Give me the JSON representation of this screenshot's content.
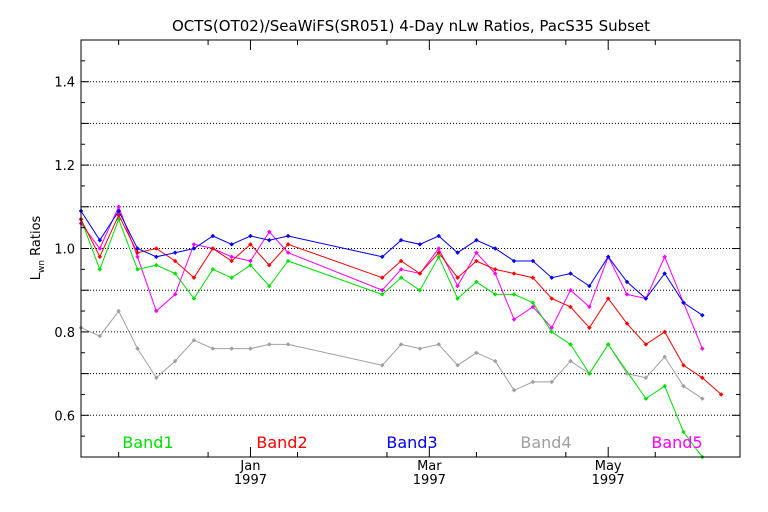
{
  "chart_data": {
    "type": "line",
    "title": "OCTS(OT02)/SeaWiFS(SR051) 4-Day nLw Ratios, PacS35 Subset",
    "ylabel_main": "L",
    "ylabel_sub": "wn",
    "ylabel_rest": " Ratios",
    "ylim": [
      0.5,
      1.5
    ],
    "yticks": [
      "0.6",
      "0.8",
      "1.0",
      "1.2",
      "1.4"
    ],
    "ytick_values": [
      0.6,
      0.8,
      1.0,
      1.2,
      1.4
    ],
    "xlim": [
      0,
      35
    ],
    "xticks": [
      {
        "x": 9,
        "month": "Jan",
        "year": "1997"
      },
      {
        "x": 18.5,
        "month": "Mar",
        "year": "1997"
      },
      {
        "x": 28,
        "month": "May",
        "year": "1997"
      }
    ],
    "x": [
      0,
      1,
      2,
      3,
      4,
      5,
      6,
      7,
      8,
      9,
      10,
      11,
      12,
      13,
      14,
      16,
      17,
      18,
      19,
      20,
      21,
      22,
      23,
      24,
      25,
      26,
      27,
      28,
      29,
      30,
      31,
      32,
      33,
      34,
      35
    ],
    "grid": true,
    "legend_position": "bottom",
    "series": [
      {
        "name": "Band1",
        "color": "#00e000",
        "values": [
          1.07,
          0.95,
          1.07,
          0.95,
          0.96,
          0.94,
          0.88,
          0.95,
          0.93,
          0.96,
          0.91,
          0.97,
          null,
          null,
          null,
          0.89,
          0.93,
          0.9,
          0.98,
          0.88,
          0.92,
          0.89,
          0.89,
          0.87,
          0.8,
          0.77,
          0.7,
          0.77,
          null,
          0.64,
          0.67,
          0.56,
          0.5,
          null,
          null
        ]
      },
      {
        "name": "Band2",
        "color": "#ff0000",
        "values": [
          1.07,
          0.98,
          1.08,
          0.99,
          1.0,
          0.97,
          0.93,
          1.0,
          0.97,
          1.01,
          0.96,
          1.01,
          null,
          null,
          null,
          0.93,
          0.97,
          0.94,
          0.99,
          0.93,
          0.97,
          0.95,
          0.94,
          0.93,
          0.88,
          0.86,
          0.81,
          0.88,
          0.82,
          0.77,
          0.8,
          0.72,
          0.69,
          0.65,
          null
        ]
      },
      {
        "name": "Band3",
        "color": "#0000ff",
        "values": [
          1.09,
          1.02,
          1.09,
          1.0,
          0.98,
          0.99,
          1.0,
          1.03,
          1.01,
          1.03,
          1.02,
          1.03,
          null,
          null,
          null,
          0.98,
          1.02,
          1.01,
          1.03,
          0.99,
          1.02,
          1.0,
          0.97,
          0.97,
          0.93,
          0.94,
          0.91,
          0.98,
          0.92,
          0.88,
          0.94,
          0.87,
          0.84,
          null,
          null
        ]
      },
      {
        "name": "Band4",
        "color": "#a0a0a0",
        "values": [
          0.81,
          0.79,
          0.85,
          0.76,
          0.69,
          0.73,
          0.78,
          0.76,
          0.76,
          0.76,
          0.77,
          0.77,
          null,
          null,
          null,
          0.72,
          0.77,
          0.76,
          0.77,
          0.72,
          0.75,
          0.73,
          0.66,
          0.68,
          0.68,
          0.73,
          0.7,
          0.77,
          0.7,
          0.69,
          0.74,
          0.67,
          0.64,
          null,
          null
        ]
      },
      {
        "name": "Band5",
        "color": "#ff00ff",
        "values": [
          1.06,
          1.0,
          1.1,
          0.98,
          0.85,
          0.89,
          1.01,
          1.0,
          0.98,
          0.97,
          1.04,
          0.99,
          null,
          null,
          null,
          0.9,
          0.95,
          0.94,
          1.0,
          0.91,
          0.99,
          0.94,
          0.83,
          0.86,
          0.81,
          0.9,
          0.86,
          0.98,
          0.89,
          0.88,
          0.98,
          0.87,
          0.76,
          null,
          null
        ]
      }
    ]
  }
}
